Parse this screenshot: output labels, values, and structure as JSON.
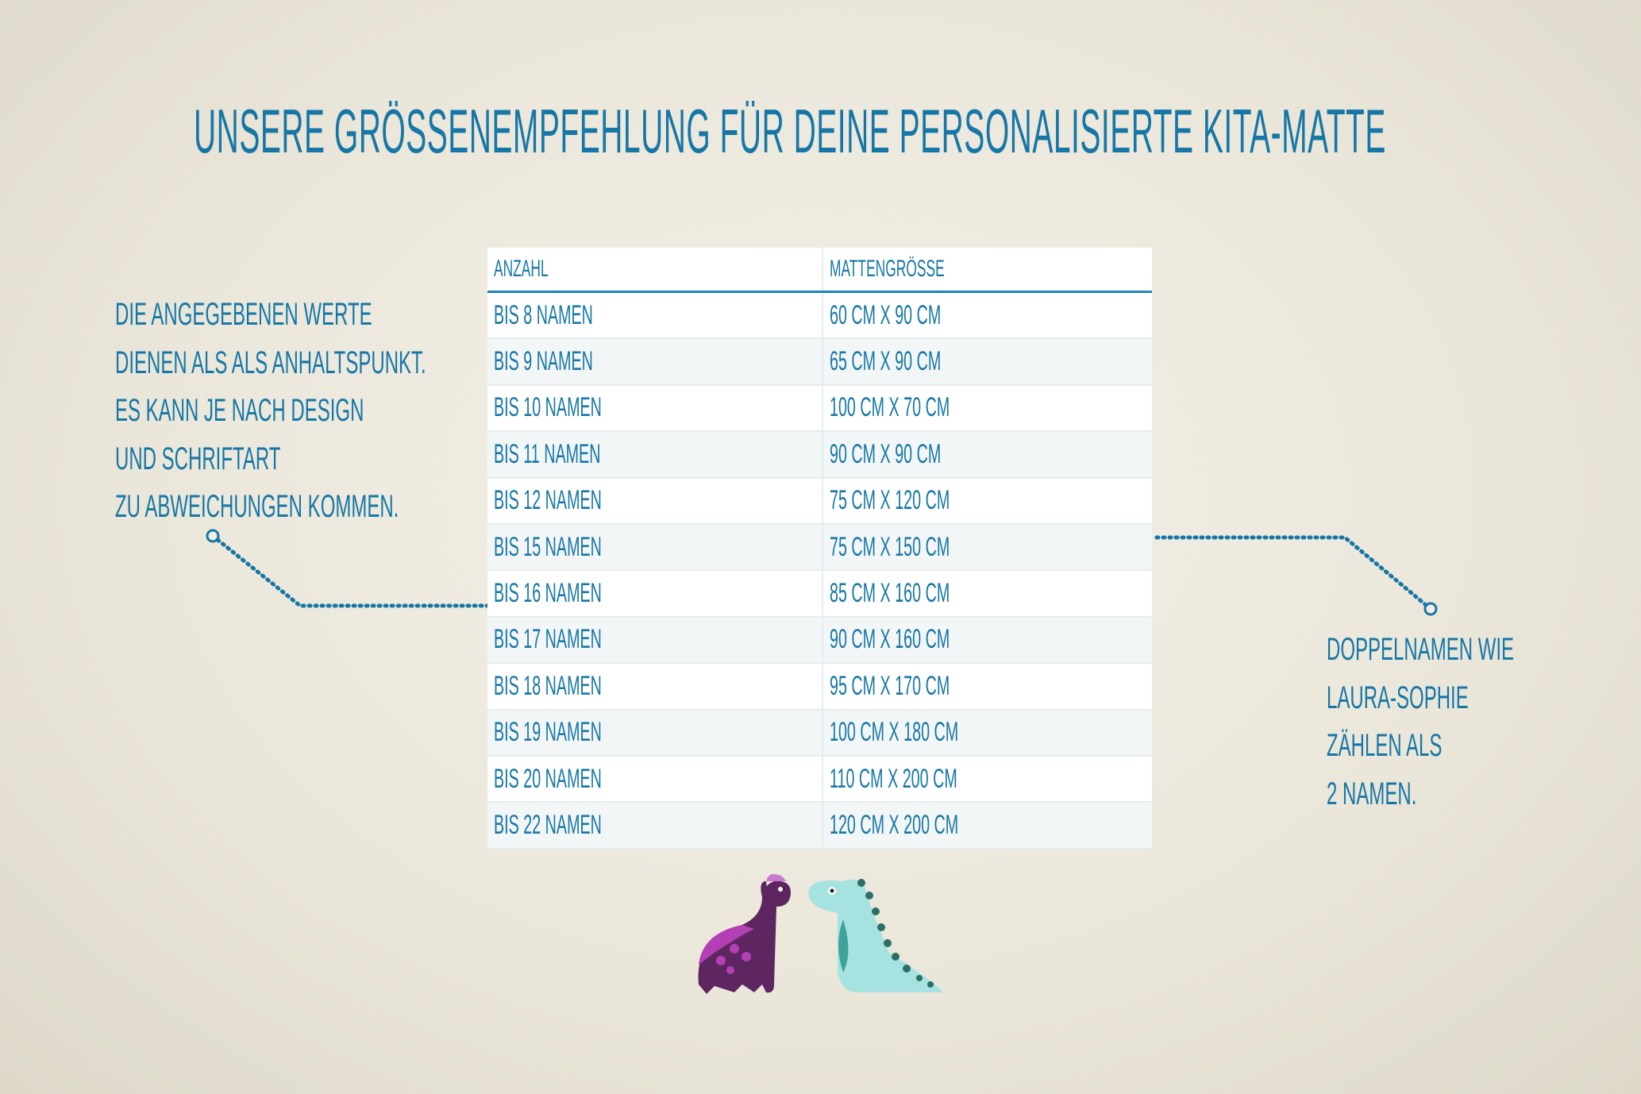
{
  "title": "Unsere Größenempfehlung für deine personalisierte Kita-Matte",
  "table": {
    "headers": [
      "Anzahl",
      "Mattengröße"
    ],
    "rows": [
      [
        "Bis 8 Namen",
        "60 cm x 90 cm"
      ],
      [
        "Bis 9 Namen",
        "65 cm x 90 cm"
      ],
      [
        "Bis 10 Namen",
        "100 cm x 70 cm"
      ],
      [
        "Bis 11 Namen",
        "90 cm x 90 cm"
      ],
      [
        "Bis 12 Namen",
        "75 cm x 120 cm"
      ],
      [
        "Bis 15 Namen",
        "75 cm x 150 cm"
      ],
      [
        "Bis 16 Namen",
        "85 cm x 160 cm"
      ],
      [
        "Bis 17 Namen",
        "90 cm x 160 cm"
      ],
      [
        "Bis 18 Namen",
        "95 cm x 170 cm"
      ],
      [
        "Bis 19 Namen",
        "100 cm x 180 cm"
      ],
      [
        "Bis 20 Namen",
        "110 cm x 200 cm"
      ],
      [
        "Bis 22 Namen",
        "120 cm x 200 cm"
      ]
    ]
  },
  "left_note": [
    "Die angegebenen Werte",
    "dienen als als Anhaltspunkt.",
    "Es kann je nach Design",
    "und Schriftart",
    "zu Abweichungen kommen."
  ],
  "right_note": [
    "Doppelnamen wie",
    "Laura-Sophie",
    "zählen als",
    "2 Namen."
  ],
  "colors": {
    "text": "#1677a6",
    "purple_dino": "#5e2660",
    "teal_dino": "#a6e3e0"
  }
}
